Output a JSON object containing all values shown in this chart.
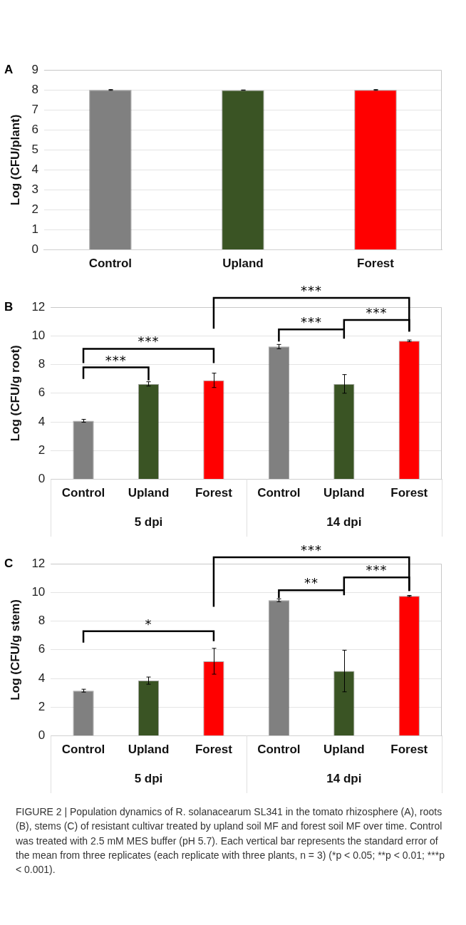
{
  "chart_data": [
    {
      "type": "bar",
      "title": "A",
      "ylabel": "Log (CFU/plant)",
      "categories": [
        "Control",
        "Upland",
        "Forest"
      ],
      "values": [
        8.0,
        7.99,
        8.0
      ],
      "errors": [
        0.02,
        0.01,
        0.02
      ],
      "colors": [
        "#808080",
        "#3a5424",
        "#ff0000"
      ],
      "ylim": [
        0,
        9
      ],
      "yticks": [
        0,
        1,
        2,
        3,
        4,
        5,
        6,
        7,
        8,
        9
      ],
      "grid": "y",
      "legend": false
    },
    {
      "type": "bar",
      "title": "B",
      "ylabel": "Log (CFU/g root)",
      "categories": [
        "Control",
        "Upland",
        "Forest",
        "Control",
        "Upland",
        "Forest"
      ],
      "values": [
        4.08,
        6.65,
        6.9,
        9.25,
        6.65,
        9.65
      ],
      "errors": [
        0.1,
        0.15,
        0.5,
        0.15,
        0.65,
        0.06
      ],
      "colors": [
        "#808080",
        "#3a5424",
        "#ff0000",
        "#808080",
        "#3a5424",
        "#ff0000"
      ],
      "ylim": [
        0,
        12
      ],
      "yticks": [
        0,
        2,
        4,
        6,
        8,
        10,
        12
      ],
      "grid": "y",
      "legend": false,
      "annotations": [
        "***",
        "***",
        "***",
        "***",
        "***",
        "5 dpi",
        "14 dpi"
      ]
    },
    {
      "type": "bar",
      "title": "C",
      "ylabel": "Log (CFU/g stem)",
      "categories": [
        "Control",
        "Upland",
        "Forest",
        "Control",
        "Upland",
        "Forest"
      ],
      "values": [
        3.15,
        3.85,
        5.2,
        9.45,
        4.52,
        9.75
      ],
      "errors": [
        0.1,
        0.25,
        0.9,
        0.1,
        1.45,
        0.04
      ],
      "colors": [
        "#808080",
        "#3a5424",
        "#ff0000",
        "#808080",
        "#3a5424",
        "#ff0000"
      ],
      "ylim": [
        0,
        12
      ],
      "yticks": [
        0,
        2,
        4,
        6,
        8,
        10,
        12
      ],
      "grid": "y",
      "legend": false,
      "annotations": [
        "*",
        "***",
        "**",
        "***",
        "5 dpi",
        "14 dpi",
        "FIGURE 2 | Population dynamics of R. solanacearum SL341 in the tomato rhizosphere (A), roots (B), stems (C) of resistant cultivar treated by upland soil MF and forest soil MF over time. Control was treated with 2.5 mM MES buffer (pH 5.7). Each vertical bar represents the standard error of the mean from three replicates (each replicate with three plants, n = 3) (*p < 0.05; **p < 0.01; ***p < 0.001)."
      ]
    }
  ]
}
